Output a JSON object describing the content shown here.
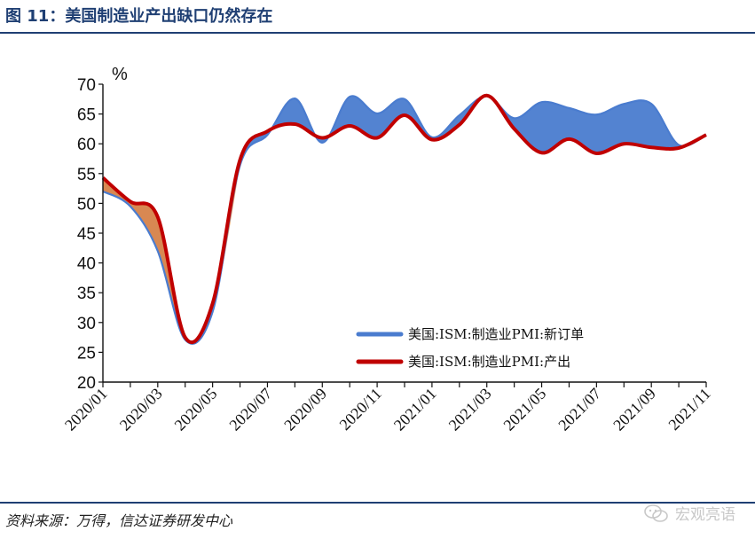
{
  "header": {
    "title": "图 11：美国制造业产出缺口仍然存在"
  },
  "footer": {
    "source": "资料来源：万得，信达证券研发中心",
    "watermark": "宏观亮语",
    "watermark_icon": "wechat-icon"
  },
  "colors": {
    "new_orders": "#4a7ccf",
    "output": "#c00000",
    "gap_fill": "#4a7ccf",
    "gap_fill_below": "#f08a3c",
    "title": "#1f3f73"
  },
  "chart_data": {
    "type": "line",
    "unit_label": "%",
    "ylim": [
      20,
      70
    ],
    "yticks": [
      20,
      25,
      30,
      35,
      40,
      45,
      50,
      55,
      60,
      65,
      70
    ],
    "x": [
      "2020/01",
      "2020/02",
      "2020/03",
      "2020/04",
      "2020/05",
      "2020/06",
      "2020/07",
      "2020/08",
      "2020/09",
      "2020/10",
      "2020/11",
      "2020/12",
      "2021/01",
      "2021/02",
      "2021/03",
      "2021/04",
      "2021/05",
      "2021/06",
      "2021/07",
      "2021/08",
      "2021/09",
      "2021/10",
      "2021/11"
    ],
    "xticklabels": [
      "2020/01",
      "2020/03",
      "2020/05",
      "2020/07",
      "2020/09",
      "2020/11",
      "2021/01",
      "2021/03",
      "2021/05",
      "2021/07",
      "2021/09",
      "2021/11"
    ],
    "series": [
      {
        "name": "美国:ISM:制造业PMI:新订单",
        "values": [
          52.0,
          49.5,
          42.0,
          27.1,
          31.8,
          56.4,
          61.5,
          67.6,
          60.2,
          67.9,
          65.1,
          67.5,
          61.1,
          64.8,
          68.0,
          64.3,
          67.0,
          66.0,
          64.9,
          66.7,
          66.7,
          59.8,
          61.5
        ]
      },
      {
        "name": "美国:ISM:制造业PMI:产出",
        "values": [
          54.3,
          50.3,
          47.7,
          27.5,
          33.2,
          57.3,
          62.1,
          63.3,
          61.0,
          63.0,
          61.0,
          64.8,
          60.7,
          63.2,
          68.1,
          62.5,
          58.5,
          60.8,
          58.4,
          60.0,
          59.4,
          59.3,
          61.5
        ]
      }
    ],
    "legend": "bottom-right",
    "grid": false
  }
}
